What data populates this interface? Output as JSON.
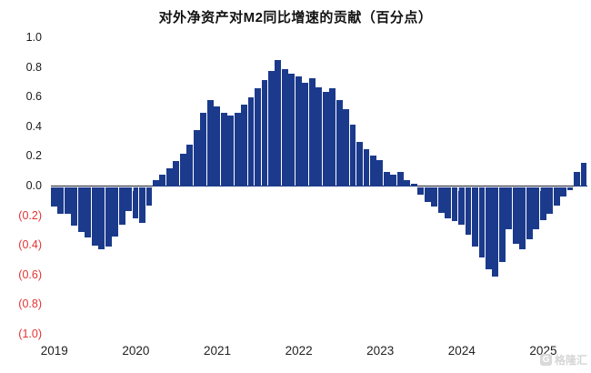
{
  "title": "对外净资产对M2同比增速的贡献（百分点）",
  "watermark": {
    "logo_glyph": "G",
    "text": "格隆汇"
  },
  "colors": {
    "bar": "#1b3a8c",
    "positive_tick_label": "#1a1a1a",
    "negative_tick_label": "#e23333",
    "axis_line": "#1c1c2e",
    "watermark": "#d6d6d6",
    "background": "#ffffff"
  },
  "y_axis": {
    "ticks": [
      {
        "label": "1.0",
        "value": 1.0,
        "negative": false
      },
      {
        "label": "0.8",
        "value": 0.8,
        "negative": false
      },
      {
        "label": "0.6",
        "value": 0.6,
        "negative": false
      },
      {
        "label": "0.4",
        "value": 0.4,
        "negative": false
      },
      {
        "label": "0.2",
        "value": 0.2,
        "negative": false
      },
      {
        "label": "0.0",
        "value": 0.0,
        "negative": false
      },
      {
        "label": "(0.2)",
        "value": -0.2,
        "negative": true
      },
      {
        "label": "(0.4)",
        "value": -0.4,
        "negative": true
      },
      {
        "label": "(0.6)",
        "value": -0.6,
        "negative": true
      },
      {
        "label": "(0.8)",
        "value": -0.8,
        "negative": true
      },
      {
        "label": "(1.0)",
        "value": -1.0,
        "negative": true
      }
    ]
  },
  "x_axis": {
    "labels": [
      "2019",
      "2020",
      "2021",
      "2022",
      "2023",
      "2024",
      "2025"
    ]
  },
  "chart_data": {
    "type": "bar",
    "title": "对外净资产对M2同比增速的贡献（百分点）",
    "x_start": "2019-01",
    "frequency": "monthly",
    "ylim": [
      -1.0,
      1.0
    ],
    "ytick_step": 0.2,
    "grid": false,
    "legend": "none",
    "bar_color": "#1b3a8c",
    "values": [
      -0.13,
      -0.18,
      -0.18,
      -0.26,
      -0.3,
      -0.34,
      -0.39,
      -0.42,
      -0.4,
      -0.33,
      -0.25,
      -0.16,
      -0.21,
      -0.24,
      -0.12,
      0.04,
      0.08,
      0.12,
      0.17,
      0.22,
      0.28,
      0.38,
      0.5,
      0.58,
      0.54,
      0.5,
      0.48,
      0.5,
      0.55,
      0.6,
      0.66,
      0.72,
      0.78,
      0.85,
      0.79,
      0.76,
      0.74,
      0.7,
      0.73,
      0.67,
      0.64,
      0.66,
      0.58,
      0.52,
      0.42,
      0.3,
      0.25,
      0.21,
      0.18,
      0.1,
      0.08,
      0.1,
      0.04,
      0.02,
      -0.05,
      -0.1,
      -0.13,
      -0.17,
      -0.21,
      -0.23,
      -0.25,
      -0.32,
      -0.4,
      -0.47,
      -0.55,
      -0.6,
      -0.5,
      -0.28,
      -0.38,
      -0.42,
      -0.35,
      -0.28,
      -0.22,
      -0.18,
      -0.12,
      -0.06,
      -0.02,
      0.1,
      0.16
    ]
  }
}
